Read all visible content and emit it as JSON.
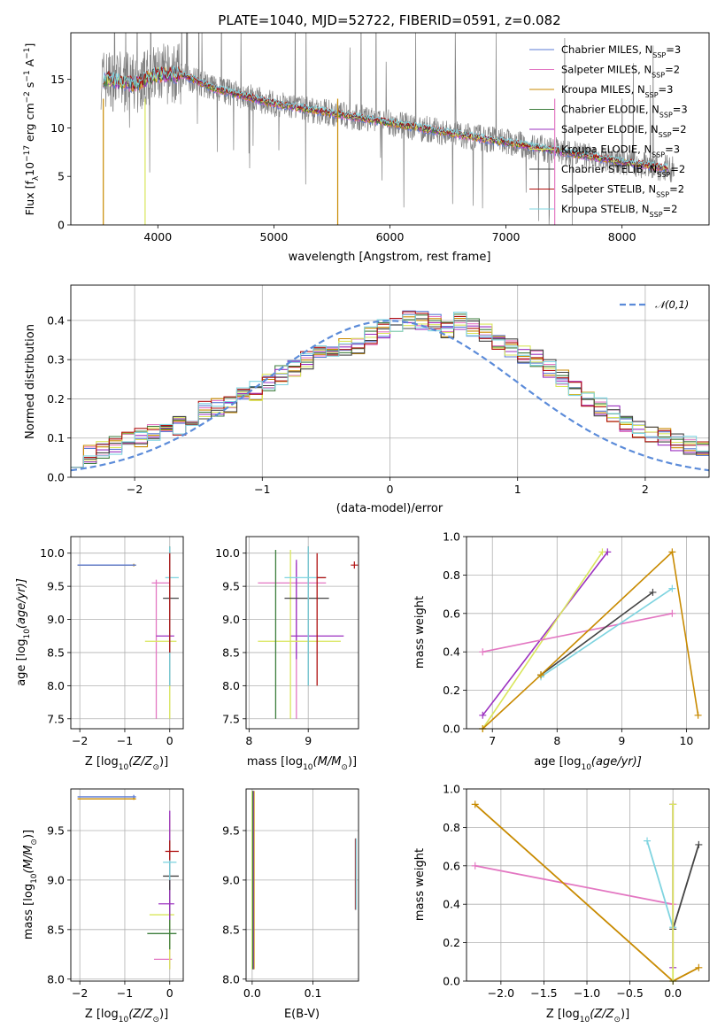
{
  "chart_data": [
    {
      "type": "line",
      "title": "PLATE=1040, MJD=52722, FIBERID=0591, z=0.082",
      "xlabel": "wavelength [Angstrom, rest frame]",
      "ylabel": "Flux [f",
      "ylabel_sub": "λ",
      "ylabel_rest": "10",
      "ylabel_exp1": "−17",
      "ylabel_mid": " erg cm",
      "ylabel_exp2": "−2",
      "ylabel_mid2": " s",
      "ylabel_exp3": "−1",
      "ylabel_mid3": " A",
      "ylabel_exp4": "−1",
      "ylabel_end": "]",
      "xlim": [
        3250,
        8750
      ],
      "ylim": [
        0,
        19.8
      ],
      "xticks": [
        4000,
        5000,
        6000,
        7000,
        8000
      ],
      "yticks": [
        0,
        5,
        10,
        15
      ],
      "legend_position": "upper-right",
      "series": [
        {
          "name": "Chabrier MILES, N",
          "nsub": "SSP",
          "nval": "=3",
          "color": "#5b7bd5"
        },
        {
          "name": "Salpeter MILES, N",
          "nsub": "SSP",
          "nval": "=2",
          "color": "#e377c2"
        },
        {
          "name": "Kroupa MILES, N",
          "nsub": "SSP",
          "nval": "=3",
          "color": "#c88a00"
        },
        {
          "name": "Chabrier ELODIE, N",
          "nsub": "SSP",
          "nval": "=3",
          "color": "#3e7e3e"
        },
        {
          "name": "Salpeter ELODIE, N",
          "nsub": "SSP",
          "nval": "=2",
          "color": "#9b30c0"
        },
        {
          "name": "Kroupa ELODIE, N",
          "nsub": "SSP",
          "nval": "=3",
          "color": "#d9e65c"
        },
        {
          "name": "Chabrier STELIB, N",
          "nsub": "SSP",
          "nval": "=2",
          "color": "#444444"
        },
        {
          "name": "Salpeter STELIB, N",
          "nsub": "SSP",
          "nval": "=2",
          "color": "#b01010"
        },
        {
          "name": "Kroupa STELIB, N",
          "nsub": "SSP",
          "nval": "=2",
          "color": "#7fd4e0"
        }
      ],
      "data_series_color": "#808080",
      "model_continuum": {
        "x": [
          3550,
          3800,
          4000,
          4200,
          4500,
          5000,
          5500,
          6000,
          6500,
          7000,
          7500,
          8000,
          8400
        ],
        "y": [
          15.0,
          14.5,
          15.5,
          15.5,
          14.0,
          12.5,
          11.5,
          10.5,
          9.5,
          8.5,
          7.5,
          6.5,
          5.8
        ]
      }
    },
    {
      "type": "histogram",
      "xlabel": "(data-model)/error",
      "ylabel": "Normed distribution",
      "xlim": [
        -2.5,
        2.5
      ],
      "ylim": [
        0,
        0.49
      ],
      "xticks": [
        -2,
        -1,
        0,
        1,
        2
      ],
      "yticks": [
        0.0,
        0.1,
        0.2,
        0.3,
        0.4
      ],
      "legend": "𝒩(0,1)",
      "legend_position": "upper-right",
      "gaussian": {
        "mu": 0,
        "sigma": 1,
        "color": "#5b8bd9"
      },
      "bin_width": 0.1,
      "bin_start": -2.5,
      "base_values": [
        0.05,
        0.06,
        0.07,
        0.08,
        0.09,
        0.1,
        0.11,
        0.12,
        0.13,
        0.15,
        0.17,
        0.18,
        0.19,
        0.21,
        0.22,
        0.24,
        0.26,
        0.28,
        0.3,
        0.31,
        0.32,
        0.33,
        0.34,
        0.36,
        0.38,
        0.39,
        0.4,
        0.4,
        0.39,
        0.38,
        0.4,
        0.38,
        0.37,
        0.35,
        0.33,
        0.31,
        0.3,
        0.28,
        0.25,
        0.22,
        0.2,
        0.18,
        0.16,
        0.14,
        0.12,
        0.11,
        0.1,
        0.09,
        0.08,
        0.07
      ]
    },
    {
      "type": "scatter",
      "xlabel": "Z [log",
      "xlabel_sub": "10",
      "xlabel_rest": "(Z/Z",
      "xlabel_sun": "⊙",
      "xlabel_end": ")]",
      "ylabel": "age  [log",
      "ylabel_sub": "10",
      "ylabel_rest": "(age/yr)]",
      "xlim": [
        -2.2,
        0.3
      ],
      "ylim": [
        7.35,
        10.25
      ],
      "xticks": [
        -2,
        -1,
        0
      ],
      "yticks": [
        7.5,
        8.0,
        8.5,
        9.0,
        9.5,
        10.0
      ]
    },
    {
      "type": "scatter",
      "xlabel": "mass [log",
      "xlabel_sub": "10",
      "xlabel_rest": "(M/M",
      "xlabel_sun": "⊙",
      "xlabel_end": ")]",
      "xlim": [
        7.95,
        9.85
      ],
      "ylim": [
        7.35,
        10.25
      ],
      "xticks": [
        8,
        9
      ],
      "yticks": [
        7.5,
        8.0,
        8.5,
        9.0,
        9.5,
        10.0
      ]
    },
    {
      "type": "line",
      "xlabel": "age  [log",
      "xlabel_sub": "10",
      "xlabel_rest": "(age/yr)]",
      "ylabel": "mass weight",
      "xlim": [
        6.6,
        10.35
      ],
      "ylim": [
        0,
        1.0
      ],
      "xticks": [
        7,
        8,
        9,
        10
      ],
      "yticks": [
        0.0,
        0.2,
        0.4,
        0.6,
        0.8,
        1.0
      ]
    },
    {
      "type": "scatter",
      "xlabel": "Z [log",
      "xlabel_sub": "10",
      "xlabel_rest": "(Z/Z",
      "xlabel_sun": "⊙",
      "xlabel_end": ")]",
      "ylabel": "mass [log",
      "ylabel_sub": "10",
      "ylabel_rest": "(M/M",
      "ylabel_sun": "⊙",
      "ylabel_end": ")]",
      "xlim": [
        -2.2,
        0.3
      ],
      "ylim": [
        7.98,
        9.92
      ],
      "xticks": [
        -2,
        -1,
        0
      ],
      "yticks": [
        8.0,
        8.5,
        9.0,
        9.5
      ]
    },
    {
      "type": "scatter",
      "xlabel": "E(B-V)",
      "xlim": [
        -0.01,
        0.175
      ],
      "ylim": [
        7.98,
        9.92
      ],
      "xticks": [
        0.0,
        0.1
      ],
      "yticks": [
        8.0,
        8.5,
        9.0,
        9.5
      ]
    },
    {
      "type": "line",
      "xlabel": "Z [log",
      "xlabel_sub": "10",
      "xlabel_rest": "(Z/Z",
      "xlabel_sun": "⊙",
      "xlabel_end": ")]",
      "ylabel": "mass weight",
      "xlim": [
        -2.4,
        0.42
      ],
      "ylim": [
        0,
        1.0
      ],
      "xticks": [
        -2.0,
        -1.5,
        -1.0,
        -0.5,
        0.0
      ],
      "yticks": [
        0.0,
        0.2,
        0.4,
        0.6,
        0.8,
        1.0
      ]
    }
  ],
  "tick_labels": {
    "p1x": [
      "4000",
      "5000",
      "6000",
      "7000",
      "8000"
    ],
    "p1y": [
      "0",
      "5",
      "10",
      "15"
    ],
    "p2x": [
      "−2",
      "−1",
      "0",
      "1",
      "2"
    ],
    "p2y": [
      "0.0",
      "0.1",
      "0.2",
      "0.3",
      "0.4"
    ],
    "p3x": [
      "−2",
      "−1",
      "0"
    ],
    "p3y": [
      "7.5",
      "8.0",
      "8.5",
      "9.0",
      "9.5",
      "10.0"
    ],
    "p4x": [
      "8",
      "9"
    ],
    "p4y": [
      "7.5",
      "8.0",
      "8.5",
      "9.0",
      "9.5",
      "10.0"
    ],
    "p5x": [
      "7",
      "8",
      "9",
      "10"
    ],
    "p5y": [
      "0.0",
      "0.2",
      "0.4",
      "0.6",
      "0.8",
      "1.0"
    ],
    "p6x": [
      "−2",
      "−1",
      "0"
    ],
    "p6y": [
      "8.0",
      "8.5",
      "9.0",
      "9.5"
    ],
    "p7x": [
      "0.0",
      "0.1"
    ],
    "p7y": [
      "8.0",
      "8.5",
      "9.0",
      "9.5"
    ],
    "p8x": [
      "−2.0",
      "−1.5",
      "−1.0",
      "−0.5",
      "0.0"
    ],
    "p8y": [
      "0.0",
      "0.2",
      "0.4",
      "0.6",
      "0.8",
      "1.0"
    ]
  }
}
